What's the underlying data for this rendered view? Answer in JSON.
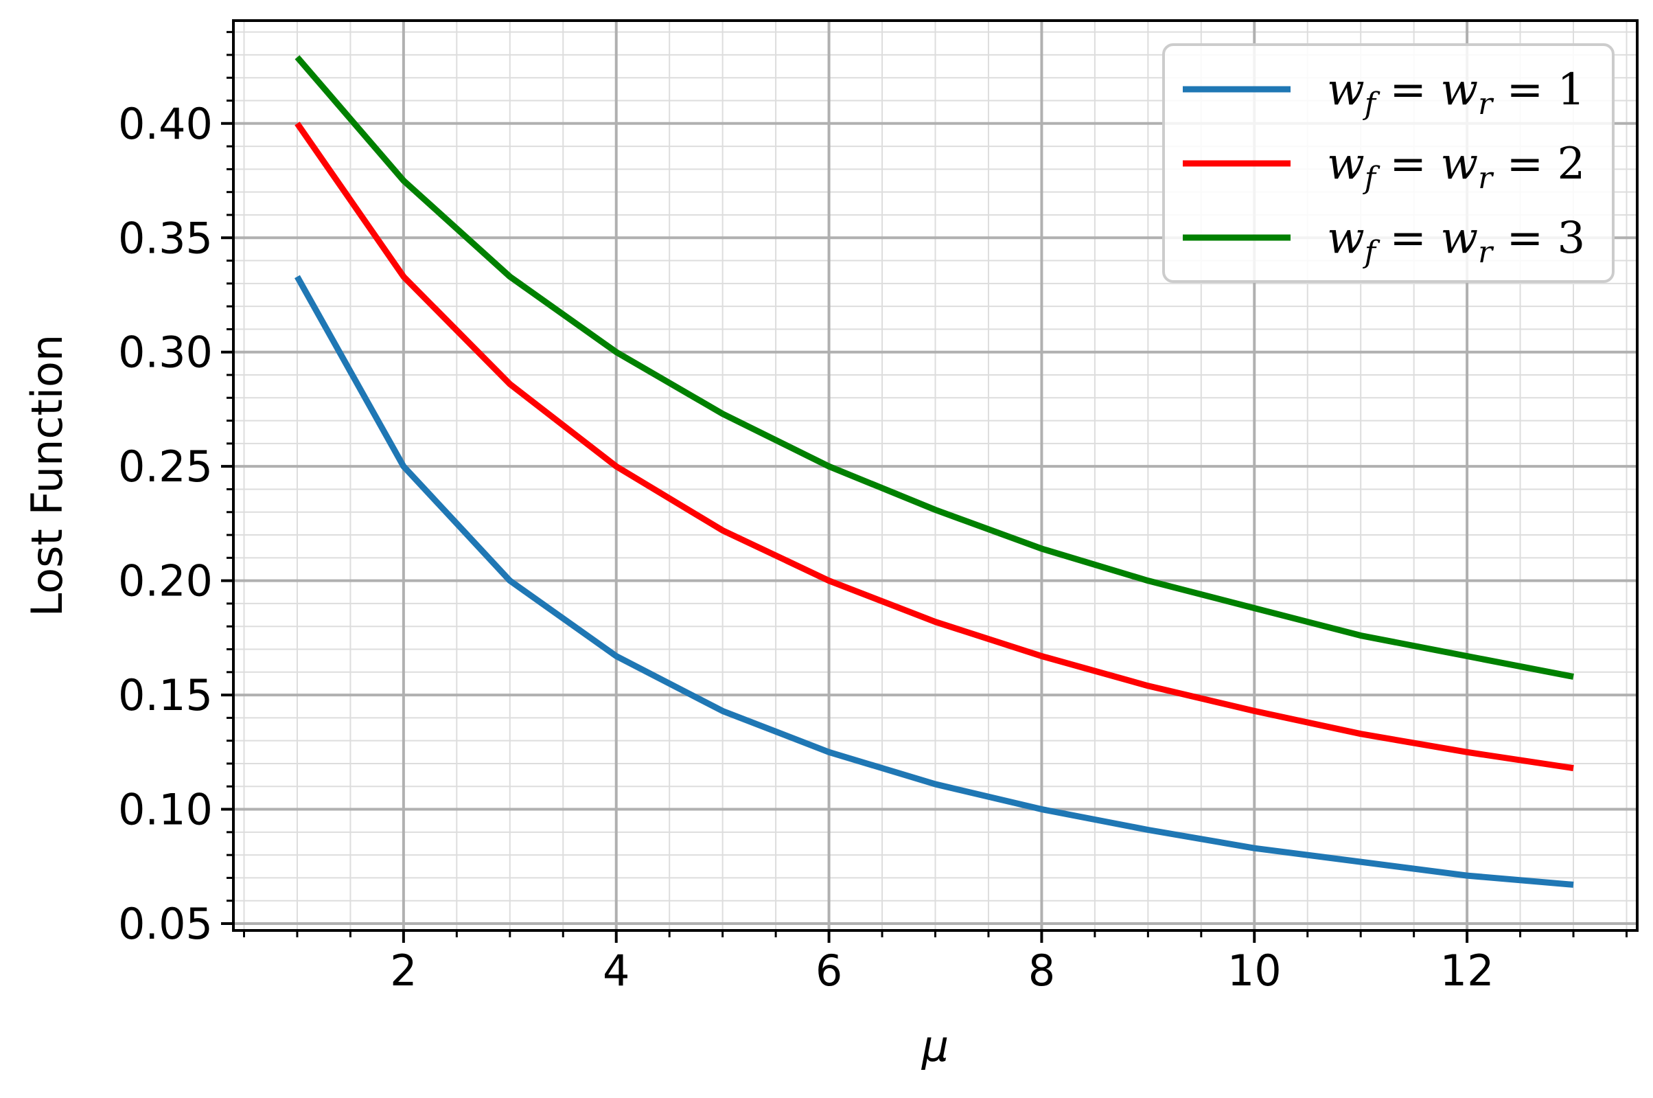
{
  "chart_data": {
    "type": "line",
    "title": "",
    "xlabel": "μ",
    "ylabel": "Lost Function",
    "xlim": [
      0.4,
      13.6
    ],
    "ylim": [
      0.047,
      0.445
    ],
    "x_ticks": [
      2,
      4,
      6,
      8,
      10,
      12
    ],
    "x_tick_labels": [
      "2",
      "4",
      "6",
      "8",
      "10",
      "12"
    ],
    "y_ticks": [
      0.05,
      0.1,
      0.15,
      0.2,
      0.25,
      0.3,
      0.35,
      0.4
    ],
    "y_tick_labels": [
      "0.05",
      "0.10",
      "0.15",
      "0.20",
      "0.25",
      "0.30",
      "0.35",
      "0.40"
    ],
    "grid": true,
    "minor_grid": true,
    "legend_position": "top-right",
    "x": [
      1,
      2,
      3,
      4,
      5,
      6,
      7,
      8,
      9,
      10,
      11,
      12,
      13
    ],
    "series": [
      {
        "name_parts": {
          "w": "w",
          "f": "f",
          "eq1": " = ",
          "w2": "w",
          "r": "r",
          "eq2": " = ",
          "val": "1"
        },
        "color": "#1f77b4",
        "values": [
          0.333,
          0.25,
          0.2,
          0.167,
          0.143,
          0.125,
          0.111,
          0.1,
          0.091,
          0.083,
          0.077,
          0.071,
          0.067
        ]
      },
      {
        "name_parts": {
          "w": "w",
          "f": "f",
          "eq1": " = ",
          "w2": "w",
          "r": "r",
          "eq2": " = ",
          "val": "2"
        },
        "color": "#ff0000",
        "values": [
          0.4,
          0.333,
          0.286,
          0.25,
          0.222,
          0.2,
          0.182,
          0.167,
          0.154,
          0.143,
          0.133,
          0.125,
          0.118
        ]
      },
      {
        "name_parts": {
          "w": "w",
          "f": "f",
          "eq1": " = ",
          "w2": "w",
          "r": "r",
          "eq2": " = ",
          "val": "3"
        },
        "color": "#008000",
        "values": [
          0.429,
          0.375,
          0.333,
          0.3,
          0.273,
          0.25,
          0.231,
          0.214,
          0.2,
          0.188,
          0.176,
          0.167,
          0.158
        ]
      }
    ]
  }
}
